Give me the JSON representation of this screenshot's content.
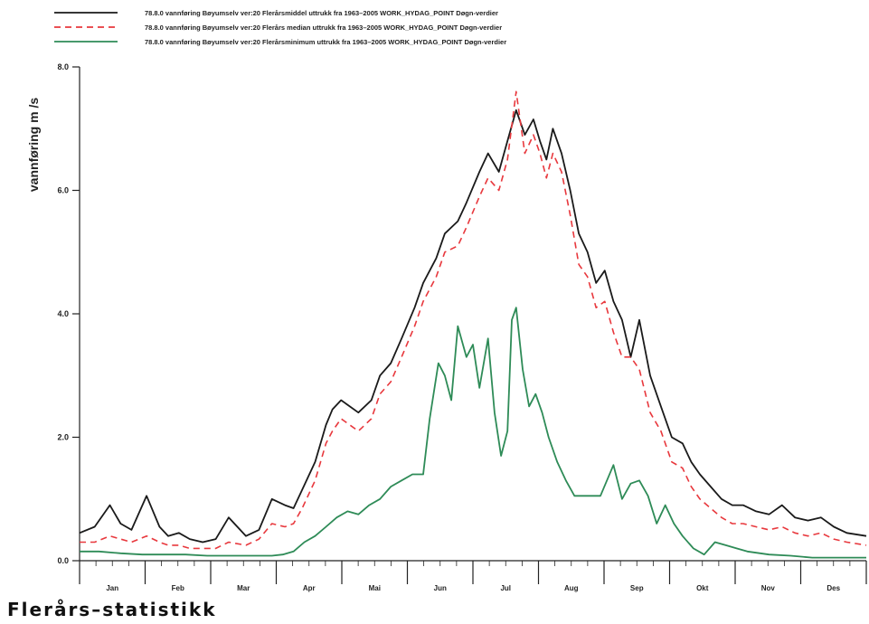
{
  "chart_data": {
    "type": "line",
    "ylabel": "vannføring  m /s",
    "ylim": [
      0,
      8
    ],
    "yticks": [
      "0.0",
      "2.0",
      "4.0",
      "6.0",
      "8.0"
    ],
    "ytick_values": [
      0,
      2,
      4,
      6,
      8
    ],
    "categories": [
      "Jan",
      "Feb",
      "Mar",
      "Apr",
      "Mai",
      "Jun",
      "Jul",
      "Aug",
      "Sep",
      "Okt",
      "Nov",
      "Des"
    ],
    "x_unit": "day of year",
    "xlim": [
      1,
      365
    ],
    "legend_position": "top-left",
    "series": [
      {
        "name": "78.8.0 vannføring Bøyumselv ver:20 Flerårsmiddel uttrukk fra 1963–2005 WORK_HYDAG_POINT Døgn-verdier",
        "color": "#1a1a1a",
        "dash": "solid",
        "x": [
          1,
          8,
          15,
          20,
          25,
          32,
          38,
          42,
          47,
          52,
          58,
          64,
          70,
          78,
          84,
          90,
          96,
          100,
          104,
          110,
          115,
          118,
          122,
          126,
          130,
          136,
          140,
          145,
          150,
          156,
          160,
          166,
          170,
          176,
          180,
          186,
          190,
          195,
          199,
          203,
          207,
          211,
          214,
          217,
          220,
          224,
          228,
          232,
          236,
          240,
          244,
          248,
          252,
          256,
          260,
          265,
          270,
          275,
          280,
          284,
          288,
          293,
          298,
          303,
          308,
          314,
          320,
          326,
          332,
          338,
          344,
          350,
          356,
          365
        ],
        "y": [
          0.45,
          0.55,
          0.9,
          0.6,
          0.5,
          1.05,
          0.55,
          0.4,
          0.45,
          0.35,
          0.3,
          0.35,
          0.7,
          0.4,
          0.5,
          1.0,
          0.9,
          0.85,
          1.15,
          1.6,
          2.2,
          2.45,
          2.6,
          2.5,
          2.4,
          2.6,
          3.0,
          3.2,
          3.6,
          4.1,
          4.5,
          4.9,
          5.3,
          5.5,
          5.8,
          6.3,
          6.6,
          6.3,
          6.8,
          7.3,
          6.9,
          7.15,
          6.8,
          6.5,
          7.0,
          6.6,
          6.0,
          5.3,
          5.0,
          4.5,
          4.7,
          4.2,
          3.9,
          3.3,
          3.9,
          3.0,
          2.5,
          2.0,
          1.9,
          1.6,
          1.4,
          1.2,
          1.0,
          0.9,
          0.9,
          0.8,
          0.75,
          0.9,
          0.7,
          0.65,
          0.7,
          0.55,
          0.45,
          0.4
        ]
      },
      {
        "name": "78.8.0 vannføring Bøyumselv ver:20 Flerårs median uttrukk fra 1963–2005 WORK_HYDAG_POINT Døgn-verdier",
        "color": "#e8383d",
        "dash": "dashed",
        "x": [
          1,
          8,
          15,
          20,
          25,
          32,
          38,
          42,
          47,
          52,
          58,
          64,
          70,
          78,
          84,
          90,
          96,
          100,
          104,
          110,
          115,
          118,
          122,
          126,
          130,
          136,
          140,
          145,
          150,
          156,
          160,
          166,
          170,
          176,
          180,
          186,
          190,
          195,
          199,
          203,
          207,
          211,
          214,
          217,
          220,
          224,
          228,
          232,
          236,
          240,
          244,
          248,
          252,
          256,
          260,
          265,
          270,
          275,
          280,
          284,
          288,
          293,
          298,
          303,
          308,
          314,
          320,
          326,
          332,
          338,
          344,
          350,
          356,
          365
        ],
        "y": [
          0.3,
          0.3,
          0.4,
          0.35,
          0.3,
          0.4,
          0.3,
          0.25,
          0.25,
          0.2,
          0.2,
          0.2,
          0.3,
          0.25,
          0.35,
          0.6,
          0.55,
          0.6,
          0.85,
          1.3,
          1.9,
          2.1,
          2.3,
          2.2,
          2.1,
          2.3,
          2.7,
          2.9,
          3.3,
          3.8,
          4.2,
          4.6,
          5.0,
          5.1,
          5.4,
          5.9,
          6.2,
          6.0,
          6.5,
          7.6,
          6.6,
          6.9,
          6.6,
          6.2,
          6.6,
          6.3,
          5.6,
          4.8,
          4.6,
          4.1,
          4.2,
          3.7,
          3.3,
          3.3,
          3.1,
          2.4,
          2.1,
          1.6,
          1.5,
          1.2,
          1.0,
          0.85,
          0.7,
          0.6,
          0.6,
          0.55,
          0.5,
          0.55,
          0.45,
          0.4,
          0.45,
          0.35,
          0.3,
          0.25
        ]
      },
      {
        "name": "78.8.0 vannføring Bøyumselv ver:20 Flerårsminimum uttrukk fra 1963–2005 WORK_HYDAG_POINT Døgn-verdier",
        "color": "#2e8b57",
        "dash": "solid",
        "x": [
          1,
          10,
          20,
          30,
          40,
          50,
          60,
          70,
          80,
          90,
          95,
          100,
          105,
          110,
          115,
          120,
          125,
          130,
          135,
          140,
          145,
          150,
          155,
          160,
          163,
          167,
          170,
          173,
          176,
          180,
          183,
          186,
          190,
          193,
          196,
          199,
          201,
          203,
          206,
          209,
          212,
          215,
          218,
          222,
          226,
          230,
          236,
          242,
          248,
          252,
          256,
          260,
          264,
          268,
          272,
          276,
          280,
          285,
          290,
          295,
          300,
          305,
          310,
          320,
          330,
          340,
          350,
          365
        ],
        "y": [
          0.15,
          0.15,
          0.12,
          0.1,
          0.1,
          0.1,
          0.08,
          0.08,
          0.08,
          0.08,
          0.1,
          0.15,
          0.3,
          0.4,
          0.55,
          0.7,
          0.8,
          0.75,
          0.9,
          1.0,
          1.2,
          1.3,
          1.4,
          1.4,
          2.3,
          3.2,
          3.0,
          2.6,
          3.8,
          3.3,
          3.5,
          2.8,
          3.6,
          2.4,
          1.7,
          2.1,
          3.9,
          4.1,
          3.1,
          2.5,
          2.7,
          2.4,
          2.0,
          1.6,
          1.3,
          1.05,
          1.05,
          1.05,
          1.55,
          1.0,
          1.25,
          1.3,
          1.05,
          0.6,
          0.9,
          0.6,
          0.4,
          0.2,
          0.1,
          0.3,
          0.25,
          0.2,
          0.15,
          0.1,
          0.08,
          0.05,
          0.05,
          0.05
        ]
      }
    ]
  },
  "footer_title": "Flerårs–statistikk"
}
